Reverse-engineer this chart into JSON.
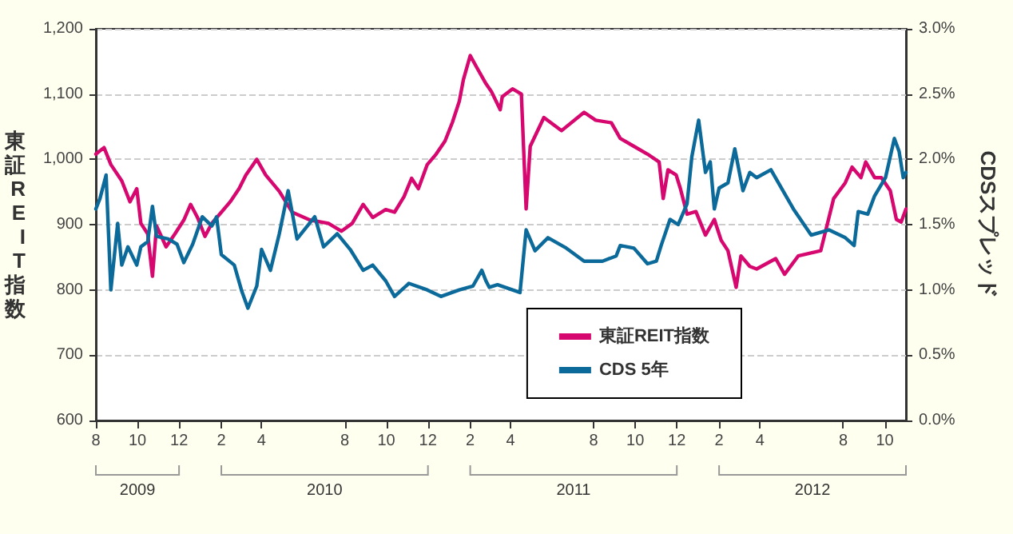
{
  "chart_data": {
    "type": "line",
    "ylabel": "東証REIT指数",
    "y2label": "CDSスプレッド",
    "xlim": [
      "2009-08-01",
      "2012-11-01"
    ],
    "xticks": [
      {
        "value": "2009-08",
        "label": "8"
      },
      {
        "value": "2009-10",
        "label": "10"
      },
      {
        "value": "2009-12",
        "label": "12"
      },
      {
        "value": "2010-02",
        "label": "2"
      },
      {
        "value": "2010-04",
        "label": "4"
      },
      {
        "value": "2010-08",
        "label": "8"
      },
      {
        "value": "2010-10",
        "label": "10"
      },
      {
        "value": "2010-12",
        "label": "12"
      },
      {
        "value": "2011-02",
        "label": "2"
      },
      {
        "value": "2011-04",
        "label": "4"
      },
      {
        "value": "2011-08",
        "label": "8"
      },
      {
        "value": "2011-10",
        "label": "10"
      },
      {
        "value": "2011-12",
        "label": "12"
      },
      {
        "value": "2012-02",
        "label": "2"
      },
      {
        "value": "2012-04",
        "label": "4"
      },
      {
        "value": "2012-08",
        "label": "8"
      },
      {
        "value": "2012-10",
        "label": "10"
      }
    ],
    "ylim": [
      600,
      1200
    ],
    "yticks": [
      600,
      700,
      800,
      900,
      {
        "value": 1000,
        "label": "1,000"
      },
      {
        "value": 1100,
        "label": "1,100"
      },
      {
        "value": 1200,
        "label": "1,200"
      }
    ],
    "y2lim": [
      0,
      3
    ],
    "y2ticks": [
      {
        "value": 0,
        "label": "0.0%"
      },
      {
        "value": 0.5,
        "label": "0.5%"
      },
      {
        "value": 1,
        "label": "1.0%"
      },
      {
        "value": 1.5,
        "label": "1.5%"
      },
      {
        "value": 2,
        "label": "2.0%"
      },
      {
        "value": 2.5,
        "label": "2.5%"
      },
      {
        "value": 3,
        "label": "3.0%"
      }
    ],
    "grid": "y",
    "legend": "bottom right",
    "marker": "none",
    "line_style": "solid",
    "annotations": [
      "2009",
      "2010",
      "2011",
      "2012"
    ],
    "series": [
      {
        "name": "東証REIT指数",
        "color": "#d6086f",
        "x": [
          "2009-08-01",
          "2009-08-13",
          "2009-08-23",
          "2009-09-08",
          "2009-09-20",
          "2009-09-30",
          "2009-10-06",
          "2009-10-16",
          "2009-10-23",
          "2009-10-29",
          "2009-11-12",
          "2009-11-25",
          "2009-12-08",
          "2009-12-18",
          "2009-12-28",
          "2010-01-08",
          "2010-01-18",
          "2010-02-01",
          "2010-02-14",
          "2010-02-27",
          "2010-03-09",
          "2010-03-25",
          "2010-04-07",
          "2010-04-27",
          "2010-05-16",
          "2010-06-11",
          "2010-07-08",
          "2010-07-27",
          "2010-08-12",
          "2010-08-28",
          "2010-09-11",
          "2010-09-30",
          "2010-10-13",
          "2010-10-27",
          "2010-11-07",
          "2010-11-17",
          "2010-11-30",
          "2010-12-13",
          "2010-12-26",
          "2011-01-06",
          "2011-01-16",
          "2011-01-22",
          "2011-02-01",
          "2011-02-11",
          "2011-02-24",
          "2011-03-04",
          "2011-03-17",
          "2011-03-20",
          "2011-04-04",
          "2011-04-17",
          "2011-04-24",
          "2011-04-30",
          "2011-05-20",
          "2011-06-15",
          "2011-07-18",
          "2011-08-04",
          "2011-08-27",
          "2011-09-09",
          "2011-09-29",
          "2011-10-19",
          "2011-11-05",
          "2011-11-11",
          "2011-11-18",
          "2011-11-30",
          "2011-12-06",
          "2011-12-16",
          "2011-12-29",
          "2012-01-12",
          "2012-01-25",
          "2012-02-04",
          "2012-02-14",
          "2012-02-26",
          "2012-03-04",
          "2012-03-17",
          "2012-03-27",
          "2012-04-24",
          "2012-05-07",
          "2012-05-27",
          "2012-06-29",
          "2012-07-18",
          "2012-08-04",
          "2012-08-14",
          "2012-08-27",
          "2012-09-03",
          "2012-09-16",
          "2012-09-26",
          "2012-10-09",
          "2012-10-18",
          "2012-10-25",
          "2012-11-01"
        ],
        "values": [
          1008,
          1018,
          992,
          967,
          935,
          955,
          902,
          886,
          821,
          898,
          866,
          886,
          907,
          931,
          911,
          882,
          902,
          919,
          935,
          955,
          976,
          1000,
          976,
          951,
          919,
          907,
          902,
          890,
          902,
          931,
          911,
          923,
          919,
          943,
          971,
          955,
          992,
          1008,
          1028,
          1057,
          1089,
          1122,
          1159,
          1140,
          1116,
          1104,
          1076,
          1096,
          1108,
          1100,
          924,
          1020,
          1064,
          1044,
          1072,
          1060,
          1056,
          1032,
          1020,
          1008,
          996,
          940,
          984,
          976,
          956,
          916,
          920,
          884,
          908,
          876,
          860,
          804,
          852,
          836,
          832,
          848,
          824,
          852,
          860,
          940,
          964,
          988,
          972,
          996,
          972,
          972,
          952,
          908,
          904,
          924
        ]
      },
      {
        "name": "CDS 5年",
        "color": "#0b6a9a",
        "axis": "y2",
        "x": [
          "2009-08-01",
          "2009-08-07",
          "2009-08-16",
          "2009-08-23",
          "2009-09-02",
          "2009-09-08",
          "2009-09-17",
          "2009-09-30",
          "2009-10-06",
          "2009-10-16",
          "2009-10-23",
          "2009-10-29",
          "2009-11-15",
          "2009-11-28",
          "2009-12-08",
          "2009-12-21",
          "2010-01-04",
          "2010-01-18",
          "2010-01-25",
          "2010-02-01",
          "2010-02-20",
          "2010-03-03",
          "2010-03-12",
          "2010-03-25",
          "2010-04-01",
          "2010-04-14",
          "2010-04-27",
          "2010-05-10",
          "2010-05-23",
          "2010-06-18",
          "2010-07-01",
          "2010-07-21",
          "2010-08-09",
          "2010-08-28",
          "2010-09-11",
          "2010-09-30",
          "2010-10-13",
          "2010-11-03",
          "2010-11-30",
          "2010-12-20",
          "2011-01-16",
          "2011-02-05",
          "2011-02-18",
          "2011-02-24",
          "2011-03-01",
          "2011-03-13",
          "2011-04-04",
          "2011-04-15",
          "2011-04-24",
          "2011-05-07",
          "2011-05-26",
          "2011-06-22",
          "2011-07-18",
          "2011-08-14",
          "2011-09-03",
          "2011-09-09",
          "2011-09-29",
          "2011-10-19",
          "2011-11-01",
          "2011-11-08",
          "2011-11-21",
          "2011-12-03",
          "2011-12-16",
          "2011-12-23",
          "2012-01-02",
          "2012-01-12",
          "2012-01-19",
          "2012-01-25",
          "2012-02-01",
          "2012-02-14",
          "2012-02-24",
          "2012-03-07",
          "2012-03-17",
          "2012-03-27",
          "2012-04-17",
          "2012-05-20",
          "2012-06-15",
          "2012-07-11",
          "2012-08-04",
          "2012-08-17",
          "2012-08-23",
          "2012-09-06",
          "2012-09-16",
          "2012-10-02",
          "2012-10-15",
          "2012-10-22",
          "2012-10-28",
          "2012-11-01"
        ],
        "values": [
          1.62,
          1.7,
          1.88,
          1.0,
          1.51,
          1.19,
          1.33,
          1.19,
          1.33,
          1.37,
          1.64,
          1.41,
          1.39,
          1.35,
          1.21,
          1.35,
          1.56,
          1.49,
          1.56,
          1.27,
          1.19,
          0.99,
          0.86,
          1.03,
          1.31,
          1.15,
          1.43,
          1.76,
          1.39,
          1.56,
          1.33,
          1.43,
          1.31,
          1.15,
          1.19,
          1.07,
          0.95,
          1.05,
          1.0,
          0.95,
          1.0,
          1.03,
          1.15,
          1.07,
          1.02,
          1.04,
          1.0,
          0.98,
          1.46,
          1.3,
          1.4,
          1.32,
          1.22,
          1.22,
          1.26,
          1.34,
          1.32,
          1.2,
          1.22,
          1.34,
          1.54,
          1.5,
          1.66,
          2.02,
          2.3,
          1.9,
          1.98,
          1.62,
          1.78,
          1.82,
          2.08,
          1.76,
          1.9,
          1.86,
          1.92,
          1.62,
          1.42,
          1.46,
          1.4,
          1.34,
          1.6,
          1.58,
          1.72,
          1.86,
          2.16,
          2.06,
          1.86,
          1.9
        ]
      }
    ]
  }
}
